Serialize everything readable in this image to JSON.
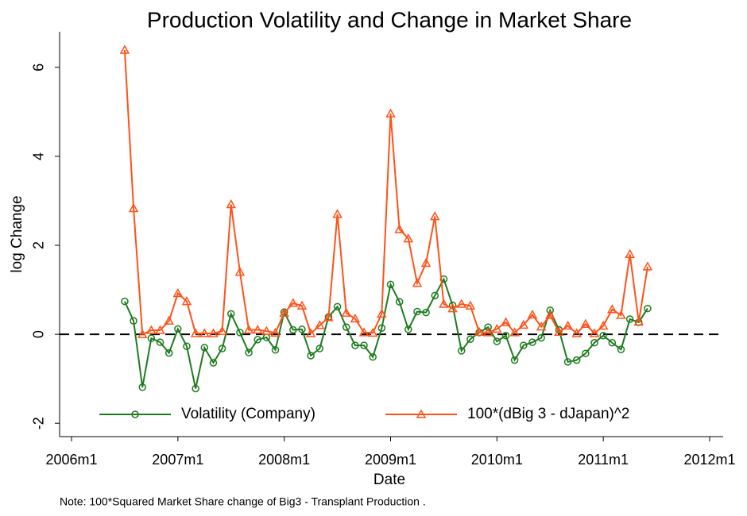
{
  "chart_data": {
    "type": "line",
    "title": "Production Volatility and Change in Market Share",
    "x_label": "Date",
    "y_label": "log Change",
    "note": "Note: 100*Squared Market Share change of Big3 - Transplant Production .",
    "x": [
      "2006m7",
      "2006m8",
      "2006m9",
      "2006m10",
      "2006m11",
      "2006m12",
      "2007m1",
      "2007m2",
      "2007m3",
      "2007m4",
      "2007m5",
      "2007m6",
      "2007m7",
      "2007m8",
      "2007m9",
      "2007m10",
      "2007m11",
      "2007m12",
      "2008m1",
      "2008m2",
      "2008m3",
      "2008m4",
      "2008m5",
      "2008m6",
      "2008m7",
      "2008m8",
      "2008m9",
      "2008m10",
      "2008m11",
      "2008m12",
      "2009m1",
      "2009m2",
      "2009m3",
      "2009m4",
      "2009m5",
      "2009m6",
      "2009m7",
      "2009m8",
      "2009m9",
      "2009m10",
      "2009m11",
      "2009m12",
      "2010m1",
      "2010m2",
      "2010m3",
      "2010m4",
      "2010m5",
      "2010m6",
      "2010m7",
      "2010m8",
      "2010m9",
      "2010m10",
      "2010m11",
      "2010m12",
      "2011m1",
      "2011m2",
      "2011m3",
      "2011m4",
      "2011m5",
      "2011m6"
    ],
    "series": [
      {
        "name": "Volatility (Company)",
        "color": "#1e7b1e",
        "marker": "circle",
        "values": [
          0.74,
          0.3,
          -1.19,
          -0.09,
          -0.18,
          -0.42,
          0.12,
          -0.27,
          -1.22,
          -0.3,
          -0.64,
          -0.32,
          0.46,
          0.04,
          -0.41,
          -0.12,
          -0.07,
          -0.35,
          0.5,
          0.1,
          0.11,
          -0.48,
          -0.32,
          0.39,
          0.62,
          0.16,
          -0.25,
          -0.25,
          -0.51,
          0.14,
          1.12,
          0.73,
          0.11,
          0.51,
          0.49,
          0.87,
          1.24,
          0.65,
          -0.37,
          -0.11,
          0.04,
          0.16,
          -0.16,
          -0.03,
          -0.58,
          -0.25,
          -0.18,
          -0.08,
          0.54,
          0.1,
          -0.62,
          -0.58,
          -0.43,
          -0.19,
          -0.03,
          -0.19,
          -0.34,
          0.34,
          0.27,
          0.58
        ]
      },
      {
        "name": "100*(dBig 3 - dJapan)^2",
        "color": "#ff5219",
        "marker": "triangle",
        "values": [
          6.39,
          2.83,
          0,
          0.09,
          0.09,
          0.3,
          0.92,
          0.74,
          0.02,
          0.02,
          0.02,
          0.07,
          2.92,
          1.4,
          0.1,
          0.1,
          0.07,
          0.03,
          0.48,
          0.7,
          0.64,
          0.02,
          0.2,
          0.38,
          2.7,
          0.48,
          0.35,
          0.04,
          0.03,
          0.46,
          4.96,
          2.36,
          2.15,
          1.15,
          1.6,
          2.65,
          0.68,
          0.58,
          0.68,
          0.64,
          0.05,
          0.04,
          0.12,
          0.27,
          0.04,
          0.21,
          0.44,
          0.17,
          0.43,
          0.05,
          0.19,
          0.02,
          0.23,
          0.02,
          0.19,
          0.56,
          0.43,
          1.8,
          0.28,
          1.52
        ]
      }
    ],
    "xlim": [
      "2006m1",
      "2012m1"
    ],
    "xticks": [
      "2006m1",
      "2007m1",
      "2008m1",
      "2009m1",
      "2010m1",
      "2011m1",
      "2012m1"
    ],
    "ylim": [
      -2.3,
      6.8
    ],
    "yticks": [
      -2,
      0,
      2,
      4,
      6
    ],
    "reference_line": 0,
    "legend": "bottom"
  }
}
